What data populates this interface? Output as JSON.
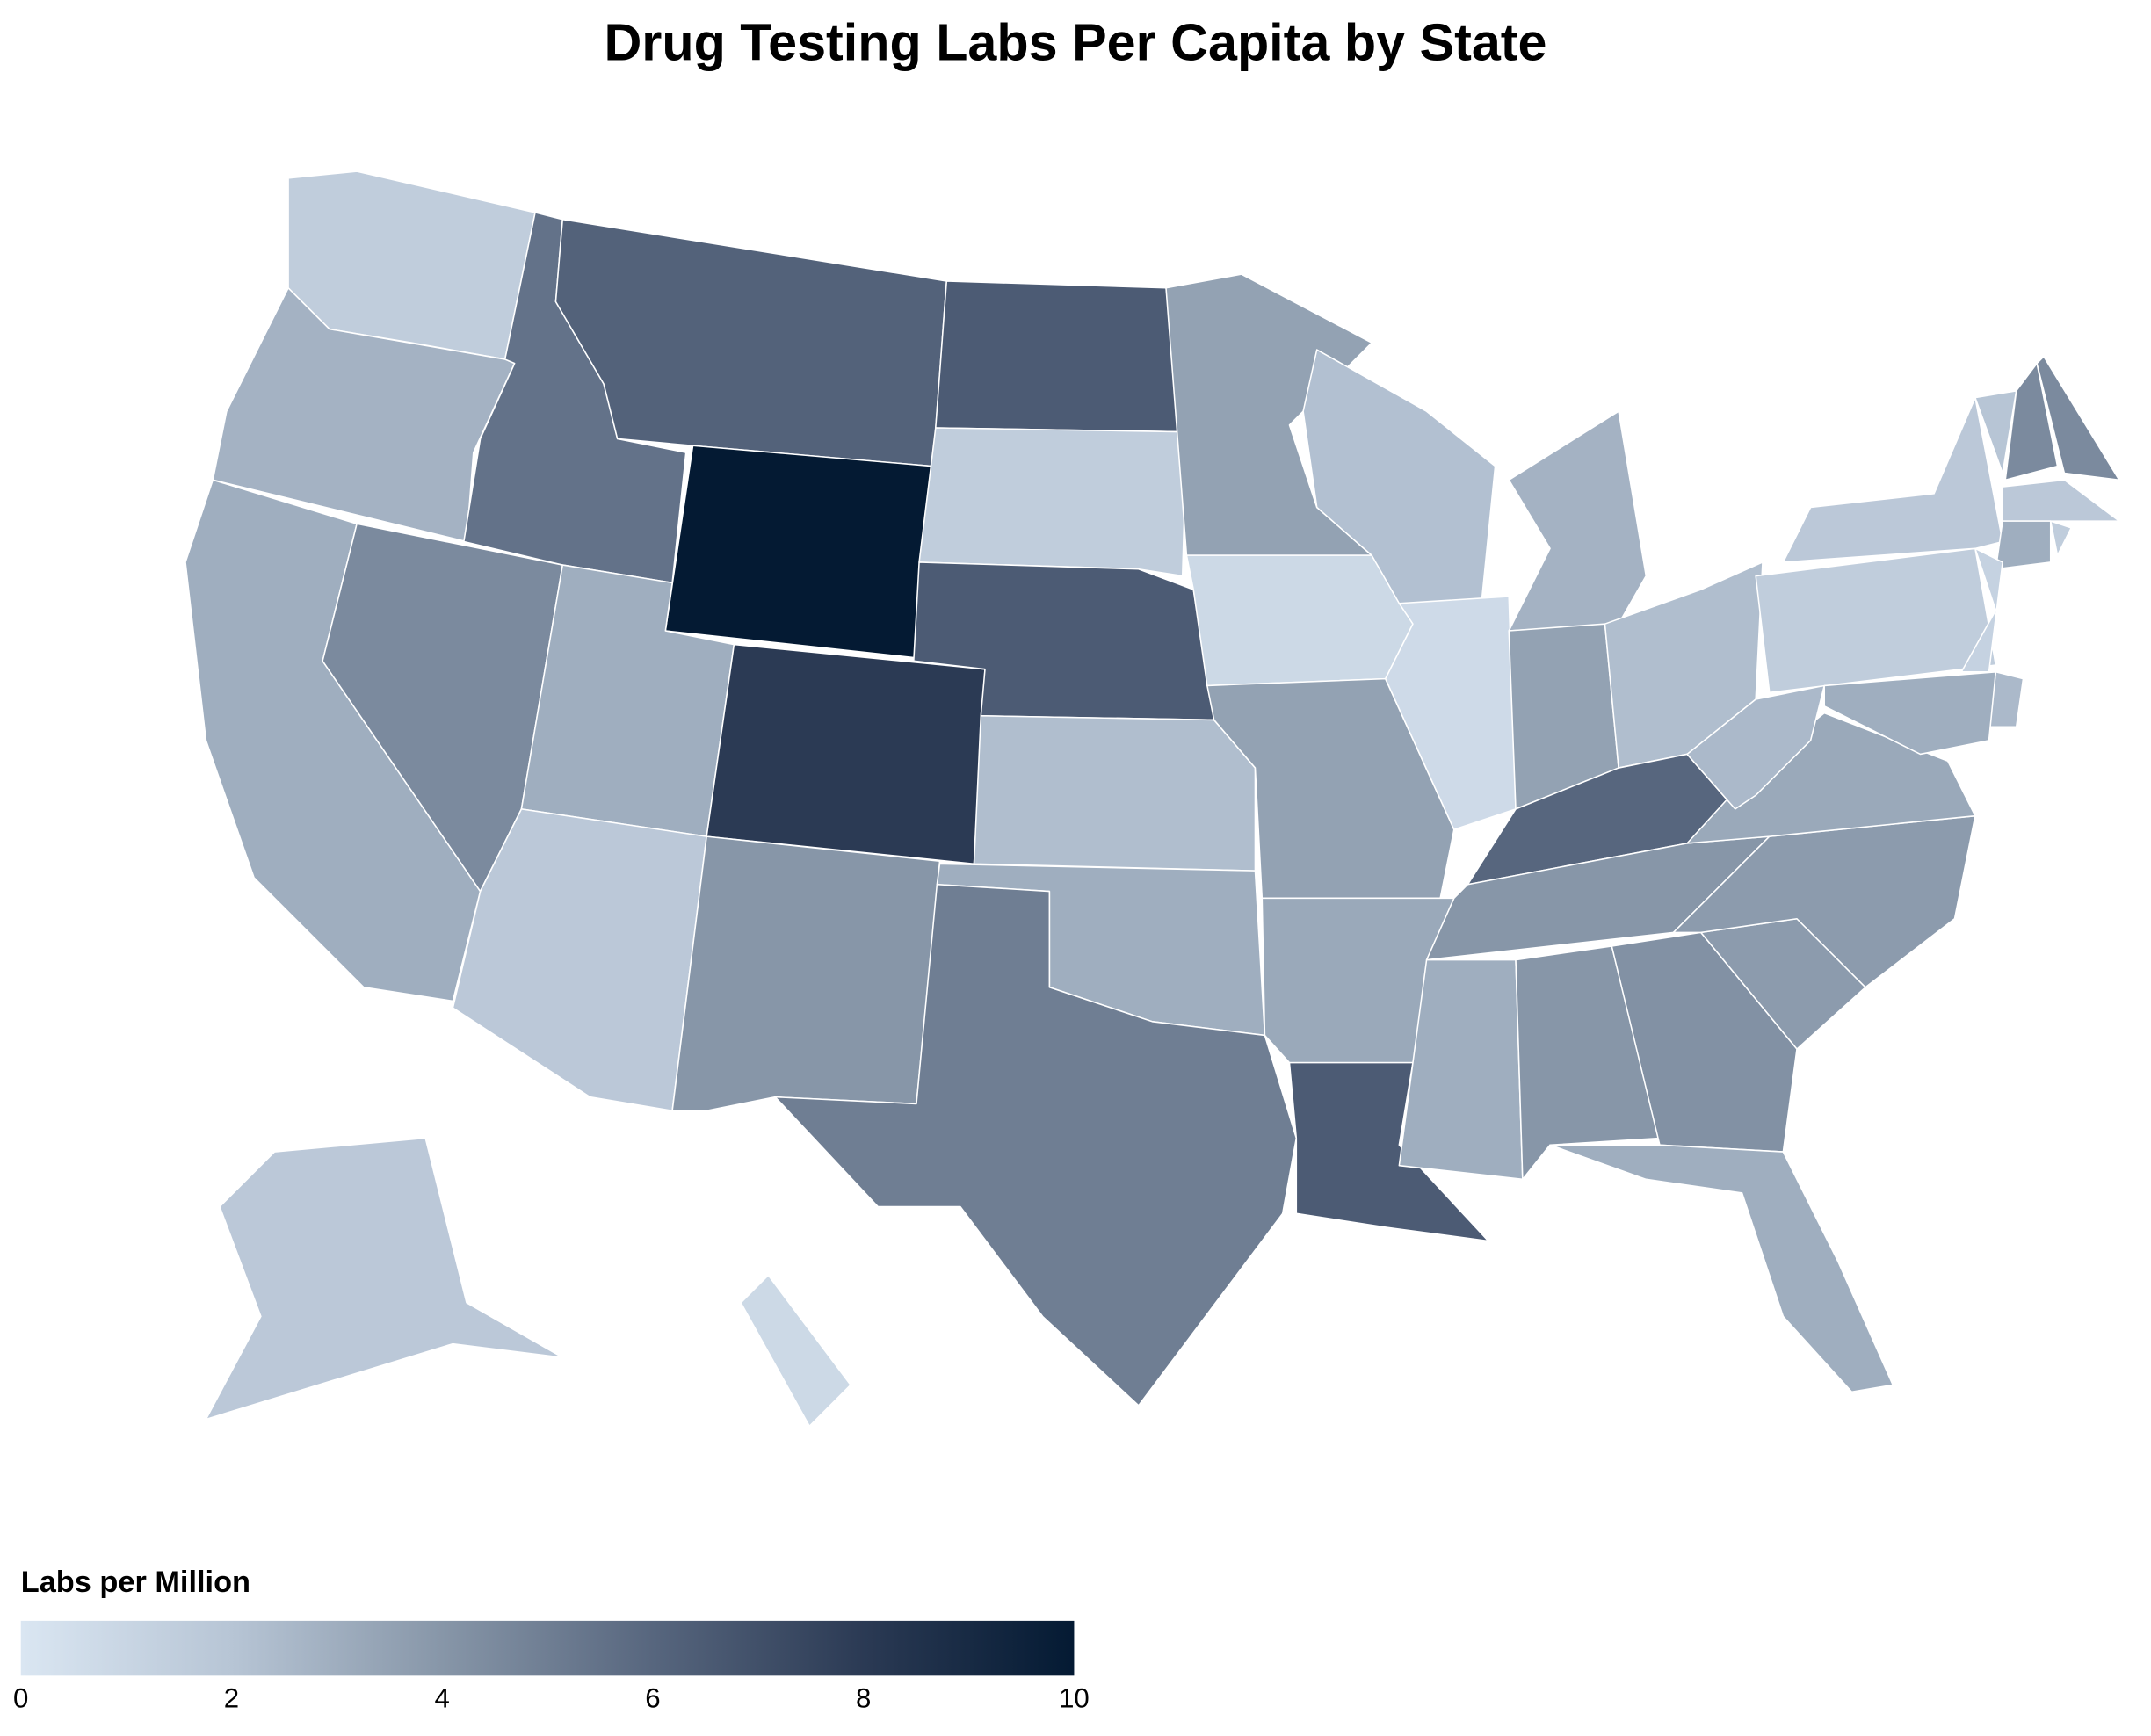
{
  "chart_data": {
    "type": "choropleth",
    "title": "Drug Testing Labs Per Capita by State",
    "colorbar_title": "Labs per Million",
    "values": [
      1.5,
      2.8,
      3.0,
      4.5,
      5.5,
      6.2,
      10,
      3.0,
      1.8,
      8.0,
      4.0,
      6.5,
      1.5,
      6.5,
      2.3,
      3.0,
      5.0,
      3.5,
      0.8,
      3.5,
      3.2,
      6.5,
      2.2,
      0.7,
      2.8,
      3.5,
      2.3,
      6.0,
      4.0,
      3.0,
      4.0,
      4.2,
      3.0,
      3.8,
      3.8,
      3.2,
      2.5,
      1.5,
      1.8,
      2.0,
      4.5,
      4.5,
      1.8,
      3.0,
      1.5,
      1.2,
      2.5,
      3.0,
      1.8,
      0.8
    ],
    "clim": [
      0,
      10
    ],
    "cticks": [
      0,
      2,
      4,
      6,
      8,
      10
    ],
    "colorscale": [
      "#dae6f2",
      "#b7c5d5",
      "#8796a8",
      "#57667e",
      "#2b3a54",
      "#041a33"
    ],
    "border_color": "#ffffff"
  }
}
